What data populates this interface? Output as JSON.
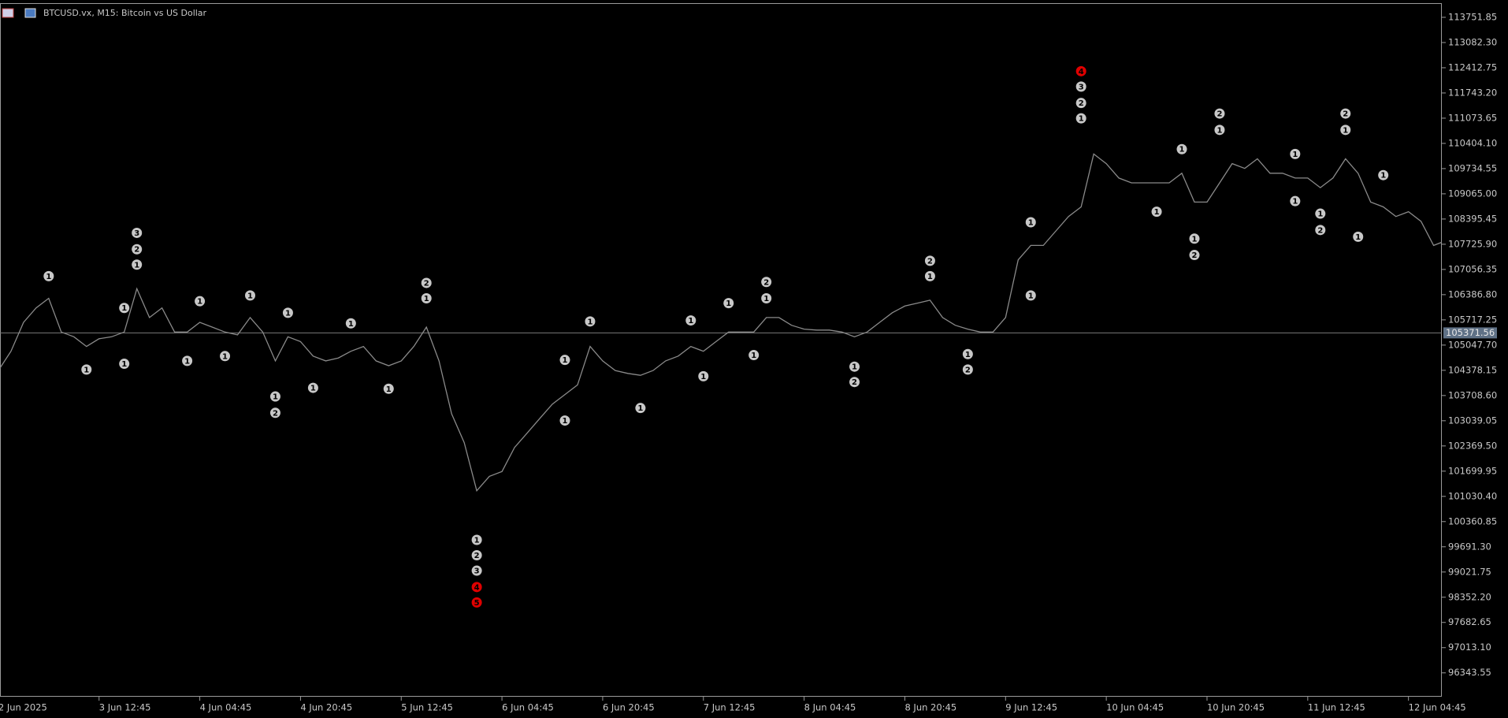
{
  "chart_data": {
    "type": "line",
    "title": "BTCUSD.vx, M15:  Bitcoin vs US Dollar",
    "color": "#8a8a8a",
    "categories": [
      "2 Jun 2025",
      null,
      null,
      null,
      null,
      null,
      null,
      null,
      "3 Jun 12:45",
      null,
      null,
      null,
      null,
      null,
      null,
      null,
      "4 Jun 04:45",
      null,
      null,
      null,
      null,
      null,
      null,
      null,
      "4 Jun 20:45",
      null,
      null,
      null,
      null,
      null,
      null,
      null,
      "5 Jun 12:45",
      null,
      null,
      null,
      null,
      null,
      null,
      null,
      "6 Jun 04:45",
      null,
      null,
      null,
      null,
      null,
      null,
      null,
      "6 Jun 20:45",
      null,
      null,
      null,
      null,
      null,
      null,
      null,
      "7 Jun 12:45",
      null,
      null,
      null,
      null,
      null,
      null,
      null,
      "8 Jun 04:45",
      null,
      null,
      null,
      null,
      null,
      null,
      null,
      "8 Jun 20:45",
      null,
      null,
      null,
      null,
      null,
      null,
      null,
      "9 Jun 12:45",
      null,
      null,
      null,
      null,
      null,
      null,
      null,
      "10 Jun 04:45",
      null,
      null,
      null,
      null,
      null,
      null,
      null,
      "10 Jun 20:45",
      null,
      null,
      null,
      null,
      null,
      null,
      null,
      "11 Jun 12:45",
      null,
      null,
      null,
      null,
      null,
      null,
      null,
      "12 Jun 04:45",
      null,
      null,
      null
    ],
    "values": [
      104373,
      104884,
      105651,
      106034,
      106290,
      105395,
      105268,
      105012,
      105216,
      105268,
      105395,
      106545,
      105779,
      106034,
      105395,
      105395,
      105651,
      105523,
      105395,
      105319,
      105779,
      105395,
      104629,
      105268,
      105140,
      104756,
      104629,
      104705,
      104884,
      105012,
      104629,
      104501,
      104629,
      105012,
      105523,
      104629,
      103223,
      102457,
      101179,
      101562,
      101690,
      102329,
      102712,
      103095,
      103479,
      103734,
      103990,
      105012,
      104629,
      104373,
      104296,
      104245,
      104373,
      104629,
      104756,
      105012,
      104884,
      105140,
      105395,
      105395,
      105395,
      105779,
      105779,
      105574,
      105472,
      105446,
      105446,
      105395,
      105268,
      105395,
      105651,
      105906,
      106085,
      106162,
      106239,
      105779,
      105574,
      105472,
      105395,
      105395,
      105779,
      107312,
      107695,
      107695,
      108079,
      108462,
      108718,
      110123,
      109867,
      109484,
      109356,
      109356,
      109356,
      109356,
      109612,
      108845,
      108845,
      109356,
      109867,
      109740,
      109995,
      109612,
      109612,
      109484,
      109484,
      109229,
      109484,
      109995,
      109612,
      108845,
      108718,
      108462,
      108590,
      108334,
      107695,
      107823
    ],
    "ylim": [
      95710,
      114128
    ],
    "yticks": [
      113751.85,
      {
        "value": 113082.3,
        "label": "113082.30"
      },
      112412.75,
      {
        "value": 111743.2,
        "label": "111743.20"
      },
      111073.65,
      {
        "value": 110404.1,
        "label": "110404.10"
      },
      109734.55,
      {
        "value": 109065,
        "label": "109065.00"
      },
      108395.45,
      {
        "value": 107725.9,
        "label": "107725.90"
      },
      107056.35,
      {
        "value": 106386.8,
        "label": "106386.80"
      },
      105717.25,
      {
        "value": 105047.7,
        "label": "105047.70"
      },
      104378.15,
      {
        "value": 103708.6,
        "label": "103708.60"
      },
      103039.05,
      {
        "value": 102369.5,
        "label": "102369.50"
      },
      101699.95,
      {
        "value": 101030.4,
        "label": "101030.40"
      },
      100360.85,
      {
        "value": 99691.3,
        "label": "99691.30"
      },
      99021.75,
      {
        "value": 98352.2,
        "label": "98352.20"
      },
      97682.65,
      {
        "value": 97013.1,
        "label": "97013.10"
      },
      96343.55
    ],
    "current_price": 105371.56,
    "marker_color": "#c8c8c8",
    "alert_color": "#e00000",
    "annotations": [
      {
        "text": "1",
        "bar": 4,
        "price": 106878
      },
      {
        "text": "1",
        "bar": 7,
        "price": 104399
      },
      {
        "text": "1",
        "bar": 10,
        "price": 104552
      },
      {
        "text": "1",
        "bar": 10,
        "price": 106034
      },
      {
        "text": "3",
        "bar": 11,
        "price": 108028
      },
      {
        "text": "2",
        "bar": 11,
        "price": 107593
      },
      {
        "text": "1",
        "bar": 11,
        "price": 107184
      },
      {
        "text": "1",
        "bar": 15,
        "price": 104629
      },
      {
        "text": "1",
        "bar": 16,
        "price": 106213
      },
      {
        "text": "1",
        "bar": 18,
        "price": 104756
      },
      {
        "text": "1",
        "bar": 20,
        "price": 106366
      },
      {
        "text": "1",
        "bar": 22,
        "price": 103683
      },
      {
        "text": "2",
        "bar": 22,
        "price": 103249
      },
      {
        "text": "1",
        "bar": 23,
        "price": 105906
      },
      {
        "text": "1",
        "bar": 25,
        "price": 103913
      },
      {
        "text": "1",
        "bar": 28,
        "price": 105625
      },
      {
        "text": "1",
        "bar": 31,
        "price": 103888
      },
      {
        "text": "2",
        "bar": 34,
        "price": 106699
      },
      {
        "text": "1",
        "bar": 34,
        "price": 106290
      },
      {
        "text": "1",
        "bar": 38,
        "price": 99875
      },
      {
        "text": "2",
        "bar": 38,
        "price": 99467
      },
      {
        "text": "3",
        "bar": 38,
        "price": 99058
      },
      {
        "text": "4",
        "bar": 38,
        "price": 98623,
        "alert": true
      },
      {
        "text": "5",
        "bar": 38,
        "price": 98214,
        "alert": true
      },
      {
        "text": "1",
        "bar": 45,
        "price": 103044
      },
      {
        "text": "1",
        "bar": 45,
        "price": 104654
      },
      {
        "text": "1",
        "bar": 47,
        "price": 105676
      },
      {
        "text": "1",
        "bar": 51,
        "price": 103377
      },
      {
        "text": "1",
        "bar": 55,
        "price": 105702
      },
      {
        "text": "1",
        "bar": 56,
        "price": 104220
      },
      {
        "text": "1",
        "bar": 58,
        "price": 106162
      },
      {
        "text": "1",
        "bar": 60,
        "price": 104782
      },
      {
        "text": "2",
        "bar": 61,
        "price": 106724
      },
      {
        "text": "1",
        "bar": 61,
        "price": 106290
      },
      {
        "text": "1",
        "bar": 68,
        "price": 104475
      },
      {
        "text": "2",
        "bar": 68,
        "price": 104067
      },
      {
        "text": "2",
        "bar": 74,
        "price": 107286
      },
      {
        "text": "1",
        "bar": 74,
        "price": 106878
      },
      {
        "text": "1",
        "bar": 77,
        "price": 104808
      },
      {
        "text": "2",
        "bar": 77,
        "price": 104399
      },
      {
        "text": "1",
        "bar": 82,
        "price": 108309
      },
      {
        "text": "1",
        "bar": 82,
        "price": 106366
      },
      {
        "text": "4",
        "bar": 86,
        "price": 112321,
        "alert": true
      },
      {
        "text": "3",
        "bar": 86,
        "price": 111912
      },
      {
        "text": "2",
        "bar": 86,
        "price": 111477
      },
      {
        "text": "1",
        "bar": 86,
        "price": 111069
      },
      {
        "text": "1",
        "bar": 92,
        "price": 108590
      },
      {
        "text": "1",
        "bar": 94,
        "price": 110251
      },
      {
        "text": "1",
        "bar": 95,
        "price": 107874
      },
      {
        "text": "2",
        "bar": 95,
        "price": 107440
      },
      {
        "text": "2",
        "bar": 97,
        "price": 111196
      },
      {
        "text": "1",
        "bar": 97,
        "price": 110762
      },
      {
        "text": "1",
        "bar": 103,
        "price": 108871
      },
      {
        "text": "1",
        "bar": 103,
        "price": 110123
      },
      {
        "text": "1",
        "bar": 105,
        "price": 108539
      },
      {
        "text": "2",
        "bar": 105,
        "price": 108104
      },
      {
        "text": "2",
        "bar": 107,
        "price": 111196
      },
      {
        "text": "1",
        "bar": 107,
        "price": 110762
      },
      {
        "text": "1",
        "bar": 108,
        "price": 107925
      },
      {
        "text": "1",
        "bar": 110,
        "price": 109561
      }
    ]
  }
}
